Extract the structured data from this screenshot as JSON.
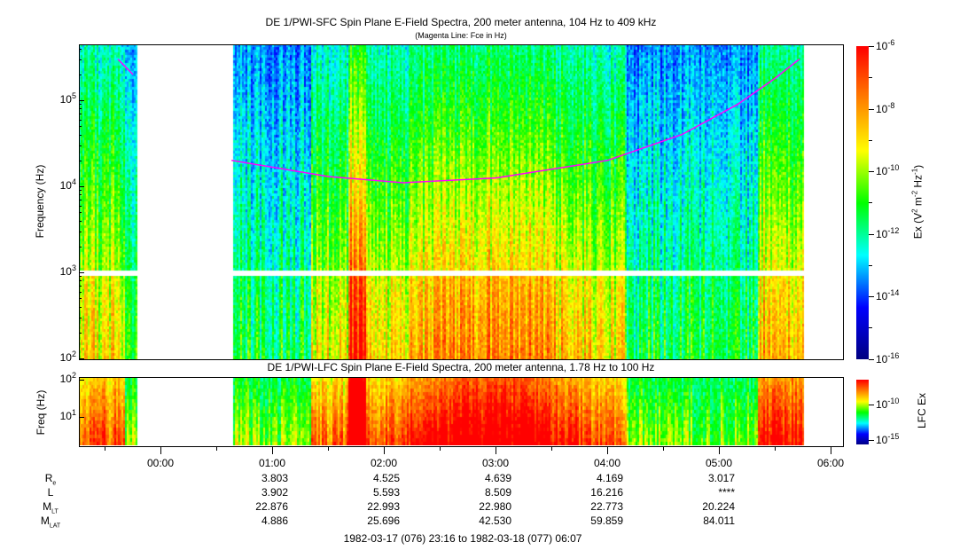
{
  "chart_data": [
    {
      "type": "heatmap",
      "title": "DE 1/PWI-SFC  Spin Plane E-Field Spectra, 200 meter antenna, 104 Hz to 409 kHz",
      "subtitle": "(Magenta Line: Fce in Hz)",
      "ylabel": "Frequency (Hz)",
      "yscale": "log",
      "ylim": [
        100,
        409000
      ],
      "y_ticks": [
        {
          "base": "10",
          "exp": "2",
          "value": 100
        },
        {
          "base": "10",
          "exp": "3",
          "value": 1000
        },
        {
          "base": "10",
          "exp": "4",
          "value": 10000
        },
        {
          "base": "10",
          "exp": "5",
          "value": 100000
        }
      ],
      "colorbar": {
        "label": "Ex (V",
        "label_parts": [
          "Ex (V",
          "2",
          " m",
          "-2",
          " Hz",
          "-1",
          ")"
        ],
        "scale": "log",
        "range": [
          1e-16,
          1e-06
        ],
        "ticks": [
          {
            "base": "10",
            "exp": "-6"
          },
          {
            "base": "10",
            "exp": "-8"
          },
          {
            "base": "10",
            "exp": "-10"
          },
          {
            "base": "10",
            "exp": "-12"
          },
          {
            "base": "10",
            "exp": "-14"
          },
          {
            "base": "10",
            "exp": "-16"
          }
        ]
      },
      "colormap": [
        "#00007f",
        "#0000ff",
        "#00ffff",
        "#00ff00",
        "#ffff00",
        "#ff7f00",
        "#ff0000"
      ],
      "data_gaps_utc": [
        [
          "23:47",
          "00:38"
        ],
        [
          "05:45",
          "06:07"
        ]
      ],
      "fce_line": {
        "color": "#ff00ff",
        "points_utc_hz": [
          [
            "23:37",
            300000
          ],
          [
            "23:45",
            200000
          ],
          [
            "00:38",
            20000
          ],
          [
            "01:30",
            13000
          ],
          [
            "02:10",
            11000
          ],
          [
            "03:00",
            12500
          ],
          [
            "04:00",
            20000
          ],
          [
            "04:40",
            40000
          ],
          [
            "05:10",
            90000
          ],
          [
            "05:30",
            180000
          ],
          [
            "05:43",
            300000
          ]
        ]
      }
    },
    {
      "type": "heatmap",
      "title": "DE 1/PWI-LFC  Spin Plane E-Field Spectra, 200 meter antenna, 1.78 Hz to 100 Hz",
      "ylabel": "Freq (Hz)",
      "yscale": "log",
      "ylim": [
        1.78,
        100
      ],
      "y_ticks": [
        {
          "base": "10",
          "exp": "2",
          "value": 100
        },
        {
          "base": "10",
          "exp": "1",
          "value": 10
        }
      ],
      "colorbar": {
        "label": "LFC Ex",
        "scale": "log",
        "ticks": [
          {
            "base": "10",
            "exp": "-10"
          },
          {
            "base": "10",
            "exp": "-15"
          }
        ]
      },
      "data_gaps_utc": [
        [
          "23:47",
          "00:38"
        ],
        [
          "05:45",
          "06:07"
        ]
      ]
    }
  ],
  "x_axis": {
    "ticks": [
      "00:00",
      "01:00",
      "02:00",
      "03:00",
      "04:00",
      "05:00",
      "06:00"
    ]
  },
  "ephemeris": {
    "rows": [
      {
        "label": "R",
        "sub": "e",
        "values": [
          "3.803",
          "4.525",
          "4.639",
          "4.169",
          "3.017"
        ]
      },
      {
        "label": "L",
        "sub": "",
        "values": [
          "3.902",
          "5.593",
          "8.509",
          "16.216",
          "****"
        ]
      },
      {
        "label": "M",
        "sub": "LT",
        "values": [
          "22.876",
          "22.993",
          "22.980",
          "22.773",
          "20.224"
        ]
      },
      {
        "label": "M",
        "sub": "LAT",
        "values": [
          "4.886",
          "25.696",
          "42.530",
          "59.859",
          "84.011"
        ]
      }
    ]
  },
  "time_range": "1982-03-17 (076) 23:16 to 1982-03-18 (077) 06:07"
}
